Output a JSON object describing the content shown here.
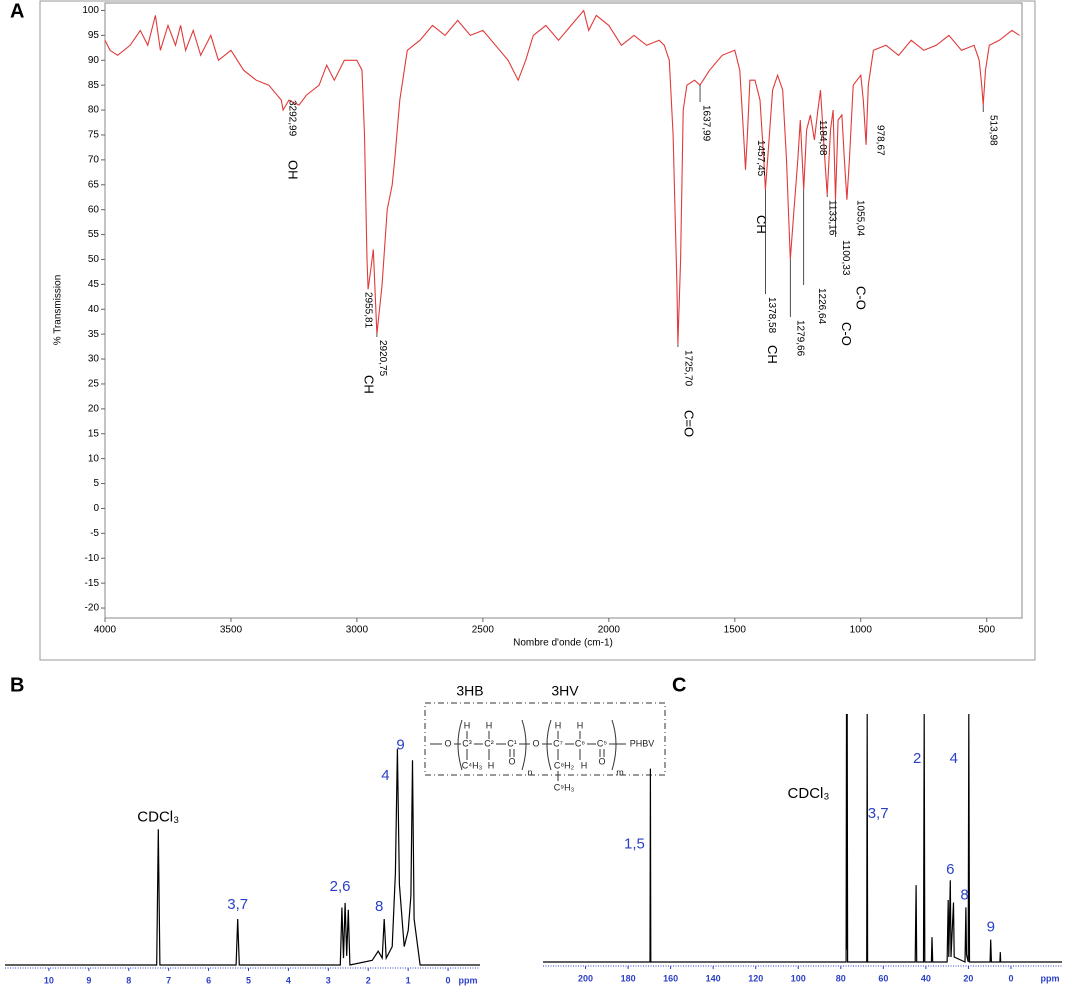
{
  "panels": [
    "A",
    "B",
    "C"
  ],
  "chart_data": [
    {
      "type": "line",
      "xlabel": "Nombre d'onde (cm-1)",
      "ylabel": "% Transmission",
      "color": "#e03a3a",
      "xlim": [
        4000,
        360
      ],
      "ylim": [
        -22,
        101.5
      ],
      "xticks": [
        4000,
        3500,
        3000,
        2500,
        2000,
        1500,
        1000,
        500
      ],
      "yticks": [
        -20,
        -15,
        -10,
        -5,
        0,
        5,
        10,
        15,
        20,
        25,
        30,
        35,
        40,
        45,
        50,
        55,
        60,
        65,
        70,
        75,
        80,
        85,
        90,
        95,
        100
      ],
      "x": [
        4000,
        3980,
        3950,
        3900,
        3860,
        3830,
        3800,
        3780,
        3750,
        3720,
        3700,
        3680,
        3650,
        3620,
        3580,
        3550,
        3500,
        3450,
        3400,
        3350,
        3300,
        3292.99,
        3270,
        3230,
        3200,
        3150,
        3120,
        3090,
        3050,
        3000,
        2980,
        2970,
        2960,
        2955.81,
        2945,
        2935,
        2920.75,
        2900,
        2880,
        2860,
        2850,
        2830,
        2800,
        2750,
        2700,
        2650,
        2600,
        2550,
        2500,
        2450,
        2400,
        2360,
        2330,
        2300,
        2250,
        2200,
        2150,
        2100,
        2080,
        2050,
        2000,
        1950,
        1900,
        1850,
        1800,
        1780,
        1760,
        1745,
        1730,
        1725.7,
        1715,
        1705,
        1690,
        1660,
        1637.99,
        1600,
        1550,
        1500,
        1480,
        1465,
        1457.45,
        1450,
        1440,
        1420,
        1400,
        1385,
        1378.58,
        1370,
        1350,
        1330,
        1310,
        1295,
        1279.66,
        1265,
        1250,
        1240,
        1226.64,
        1215,
        1200,
        1184.08,
        1170,
        1160,
        1145,
        1133.16,
        1120,
        1110,
        1100.33,
        1090,
        1075,
        1065,
        1055.04,
        1045,
        1030,
        1000,
        990,
        978.67,
        970,
        950,
        900,
        850,
        800,
        750,
        700,
        650,
        600,
        550,
        530,
        520,
        513.98,
        505,
        490,
        450,
        400,
        370
      ],
      "values": [
        94,
        92,
        91,
        93,
        96,
        93,
        99,
        92,
        97,
        93,
        97,
        92,
        96,
        91,
        95,
        90,
        92,
        88,
        86,
        85,
        82,
        80,
        82,
        81,
        83,
        85,
        89,
        86,
        90,
        90,
        88,
        75,
        50,
        44,
        48,
        52,
        35,
        45,
        60,
        65,
        70,
        82,
        92,
        94,
        97,
        95,
        98,
        95,
        96,
        93,
        90,
        86,
        90,
        95,
        97,
        94,
        97,
        100,
        96,
        99,
        97,
        93,
        95,
        93,
        94,
        93,
        90,
        75,
        45,
        33,
        50,
        80,
        85,
        86,
        85,
        88,
        91,
        92,
        88,
        75,
        68,
        75,
        86,
        86,
        82,
        70,
        64,
        70,
        84,
        87,
        84,
        70,
        50,
        60,
        70,
        78,
        64,
        76,
        79,
        74,
        80,
        84,
        72,
        63,
        76,
        80,
        62,
        78,
        79,
        70,
        62,
        70,
        85,
        87,
        82,
        73,
        85,
        92,
        93,
        91,
        94,
        92,
        93,
        95,
        92,
        93,
        90,
        85,
        81,
        88,
        93,
        94,
        96,
        95
      ],
      "peaks": [
        {
          "x": 3292.99,
          "label": "3292,99",
          "group": "OH"
        },
        {
          "x": 2955.81,
          "label": "2955,81",
          "group": "CH"
        },
        {
          "x": 2920.75,
          "label": "2920,75"
        },
        {
          "x": 1725.7,
          "label": "1725,70",
          "group": "C=O"
        },
        {
          "x": 1637.99,
          "label": "1637,99"
        },
        {
          "x": 1457.45,
          "label": "1457,45",
          "group": "CH"
        },
        {
          "x": 1378.58,
          "label": "1378,58",
          "group": "CH"
        },
        {
          "x": 1279.66,
          "label": "1279,66"
        },
        {
          "x": 1226.64,
          "label": "1226,64"
        },
        {
          "x": 1184.08,
          "label": "1184,08"
        },
        {
          "x": 1133.16,
          "label": "1133,16"
        },
        {
          "x": 1100.33,
          "label": "1100,33",
          "group": "C-O"
        },
        {
          "x": 1055.04,
          "label": "1055,04",
          "group": "C-O"
        },
        {
          "x": 978.67,
          "label": "978,67"
        },
        {
          "x": 513.98,
          "label": "513,98"
        }
      ]
    },
    {
      "type": "line",
      "xunit": "ppm",
      "color": "#000000",
      "axis_color": "#2a3fc8",
      "xlim": [
        11.1,
        -0.8
      ],
      "ylim": [
        0,
        100
      ],
      "xticks": [
        10,
        9,
        8,
        7,
        6,
        5,
        4,
        3,
        2,
        1,
        0
      ],
      "x": [
        11.1,
        7.3,
        7.26,
        7.22,
        5.31,
        5.27,
        5.23,
        2.7,
        2.66,
        2.62,
        2.58,
        2.54,
        2.5,
        2.46,
        1.9,
        1.75,
        1.65,
        1.6,
        1.55,
        1.4,
        1.32,
        1.27,
        1.22,
        1.1,
        1.0,
        0.93,
        0.89,
        0.85,
        0.7,
        -0.8
      ],
      "values": [
        0,
        0,
        59,
        0,
        0,
        20,
        0,
        0,
        25,
        3,
        27,
        4,
        24,
        0,
        2,
        6,
        3,
        20,
        3,
        8,
        40,
        94,
        35,
        8,
        15,
        30,
        89,
        20,
        0,
        0
      ],
      "annotations": [
        {
          "text": "CDCl₃",
          "x": 7.26,
          "color": "#000000"
        },
        {
          "text": "3,7",
          "x": 5.27,
          "color": "#2a3fc8"
        },
        {
          "text": "2,6",
          "x": 2.58,
          "color": "#2a3fc8"
        },
        {
          "text": "8",
          "x": 1.6,
          "color": "#2a3fc8"
        },
        {
          "text": "4",
          "x": 1.27,
          "color": "#2a3fc8"
        },
        {
          "text": "9",
          "x": 0.89,
          "color": "#2a3fc8"
        }
      ]
    },
    {
      "type": "line",
      "xunit": "ppm",
      "color": "#000000",
      "axis_color": "#2a3fc8",
      "xlim": [
        220,
        -24
      ],
      "ylim": [
        0,
        100
      ],
      "xticks": [
        200,
        180,
        160,
        140,
        120,
        100,
        80,
        60,
        40,
        20,
        0
      ],
      "x": [
        220,
        169.7,
        169.5,
        169.3,
        77.5,
        77.3,
        77.15,
        77.0,
        76.8,
        67.8,
        67.6,
        67.4,
        45,
        44.6,
        44.3,
        41.1,
        40.8,
        40.5,
        37.4,
        37.1,
        36.8,
        30,
        29.5,
        29.2,
        28.5,
        28.2,
        27,
        26.7,
        21.6,
        21.2,
        20.9,
        20.1,
        19.8,
        19.5,
        9.8,
        9.5,
        9.2,
        5.2,
        5,
        4.8,
        -24
      ],
      "values": [
        0,
        0,
        78,
        0,
        0,
        100,
        5,
        100,
        0,
        0,
        100,
        0,
        0,
        31,
        0,
        0,
        100,
        0,
        0,
        10,
        0,
        0,
        25,
        2,
        33,
        2,
        24,
        2,
        0,
        22,
        3,
        0,
        100,
        0,
        0,
        9,
        0,
        0,
        4,
        0,
        0
      ],
      "annotations": [
        {
          "text": "CDCl₃",
          "x": 77.3,
          "color": "#000000"
        },
        {
          "text": "3,7",
          "x": 67.6,
          "color": "#2a3fc8"
        },
        {
          "text": "2",
          "x": 40.8,
          "color": "#2a3fc8"
        },
        {
          "text": "4",
          "x": 19.8,
          "color": "#2a3fc8"
        },
        {
          "text": "1,5",
          "x": 169.5,
          "color": "#2a3fc8"
        },
        {
          "text": "6",
          "x": 28.5,
          "color": "#2a3fc8"
        },
        {
          "text": "8",
          "x": 27,
          "color": "#2a3fc8"
        },
        {
          "text": "9",
          "x": 9.5,
          "color": "#2a3fc8"
        }
      ]
    }
  ],
  "structure": {
    "headers": [
      "3HB",
      "3HV"
    ],
    "atoms": [
      "O",
      "C³",
      "C²",
      "C¹",
      "O",
      "C⁷",
      "C⁶",
      "C⁵",
      "PHBV",
      "H",
      "H",
      "H",
      "H",
      "C⁴H₃",
      "H",
      "O",
      "n",
      "C⁸H₂",
      "H",
      "O",
      "m",
      "C⁹H₃"
    ]
  }
}
